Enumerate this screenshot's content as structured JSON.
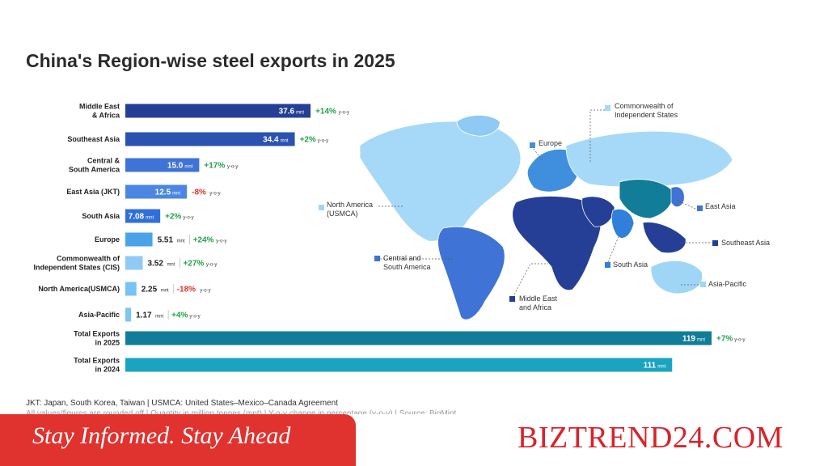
{
  "title": "China's Region-wise steel exports in 2025",
  "unit_label": "mnt",
  "yoy_label": "y-o-y",
  "chart_data": {
    "type": "bar",
    "orientation": "horizontal",
    "title": "China's Region-wise steel exports in 2025",
    "xlim": [
      0,
      119
    ],
    "categories": [
      "Middle East & Africa",
      "Southeast Asia",
      "Central & South America",
      "East Asia (JKT)",
      "South Asia",
      "Europe",
      "Commonwealth of Independent States (CIS)",
      "North America(USMCA)",
      "Asia-Pacific",
      "Total Exports in 2025",
      "Total Exports in 2024"
    ],
    "category_lines": [
      [
        "Middle East",
        "& Africa"
      ],
      [
        "Southeast Asia"
      ],
      [
        "Central &",
        "South America"
      ],
      [
        "East Asia (JKT)"
      ],
      [
        "South Asia"
      ],
      [
        "Europe"
      ],
      [
        "Commonwealth of",
        "Independent States (CIS)"
      ],
      [
        "North America(USMCA)"
      ],
      [
        "Asia-Pacific"
      ],
      [
        "Total Exports",
        "in 2025"
      ],
      [
        "Total Exports",
        "in 2024"
      ]
    ],
    "values": [
      37.6,
      34.4,
      15.0,
      12.5,
      7.08,
      5.51,
      3.52,
      2.25,
      1.17,
      119,
      111
    ],
    "value_labels": [
      "37.6",
      "34.4",
      "15.0",
      "12.5",
      "7.08",
      "5.51",
      "3.52",
      "2.25",
      "1.17",
      "119",
      "111"
    ],
    "yoy": [
      "+14%",
      "+2%",
      "+17%",
      "-8%",
      "+2%",
      "+24%",
      "+27%",
      "-18%",
      "+4%",
      "+7%",
      ""
    ],
    "colors": [
      "#243f95",
      "#2b52b0",
      "#3f73d6",
      "#4a86e2",
      "#2f6fdb",
      "#4aa3e8",
      "#8fcaf4",
      "#77c3f3",
      "#7fc5f2",
      "#117d98",
      "#1aa4c0"
    ]
  },
  "colors": {
    "positive": "#22a04a",
    "negative": "#e0322e",
    "brand": "#d8232a",
    "banner": "#e0322e"
  },
  "map_legend": [
    {
      "label": [
        "Commonwealth of",
        "Independent States"
      ],
      "color": "#a6d9f7"
    },
    {
      "label": [
        "Europe"
      ],
      "color": "#3f8fde"
    },
    {
      "label": [
        "East Asia"
      ],
      "color": "#3f73d6"
    },
    {
      "label": [
        "North America",
        "(USMCA)"
      ],
      "color": "#9fd6f6"
    },
    {
      "label": [
        "Southeast Asia"
      ],
      "color": "#243f95"
    },
    {
      "label": [
        "Central and",
        "South America"
      ],
      "color": "#3f73d6"
    },
    {
      "label": [
        "South Asia"
      ],
      "color": "#2f7fdb"
    },
    {
      "label": [
        "Middle East",
        "and Africa"
      ],
      "color": "#243f95"
    },
    {
      "label": [
        "Asia-Pacific"
      ],
      "color": "#9fd6f6"
    }
  ],
  "footnote": "JKT: Japan, South Korea, Taiwan | USMCA: United States–Mexico–Canada Agreement",
  "footnote2": "All values/figures are rounded off | Quantity in million tonnes (mnt) | Y-o-y change in percentage (y-o-y) | Source: BigMint",
  "banner": {
    "slogan": "Stay Informed. Stay Ahead",
    "brand": "BIZTREND24.COM"
  }
}
